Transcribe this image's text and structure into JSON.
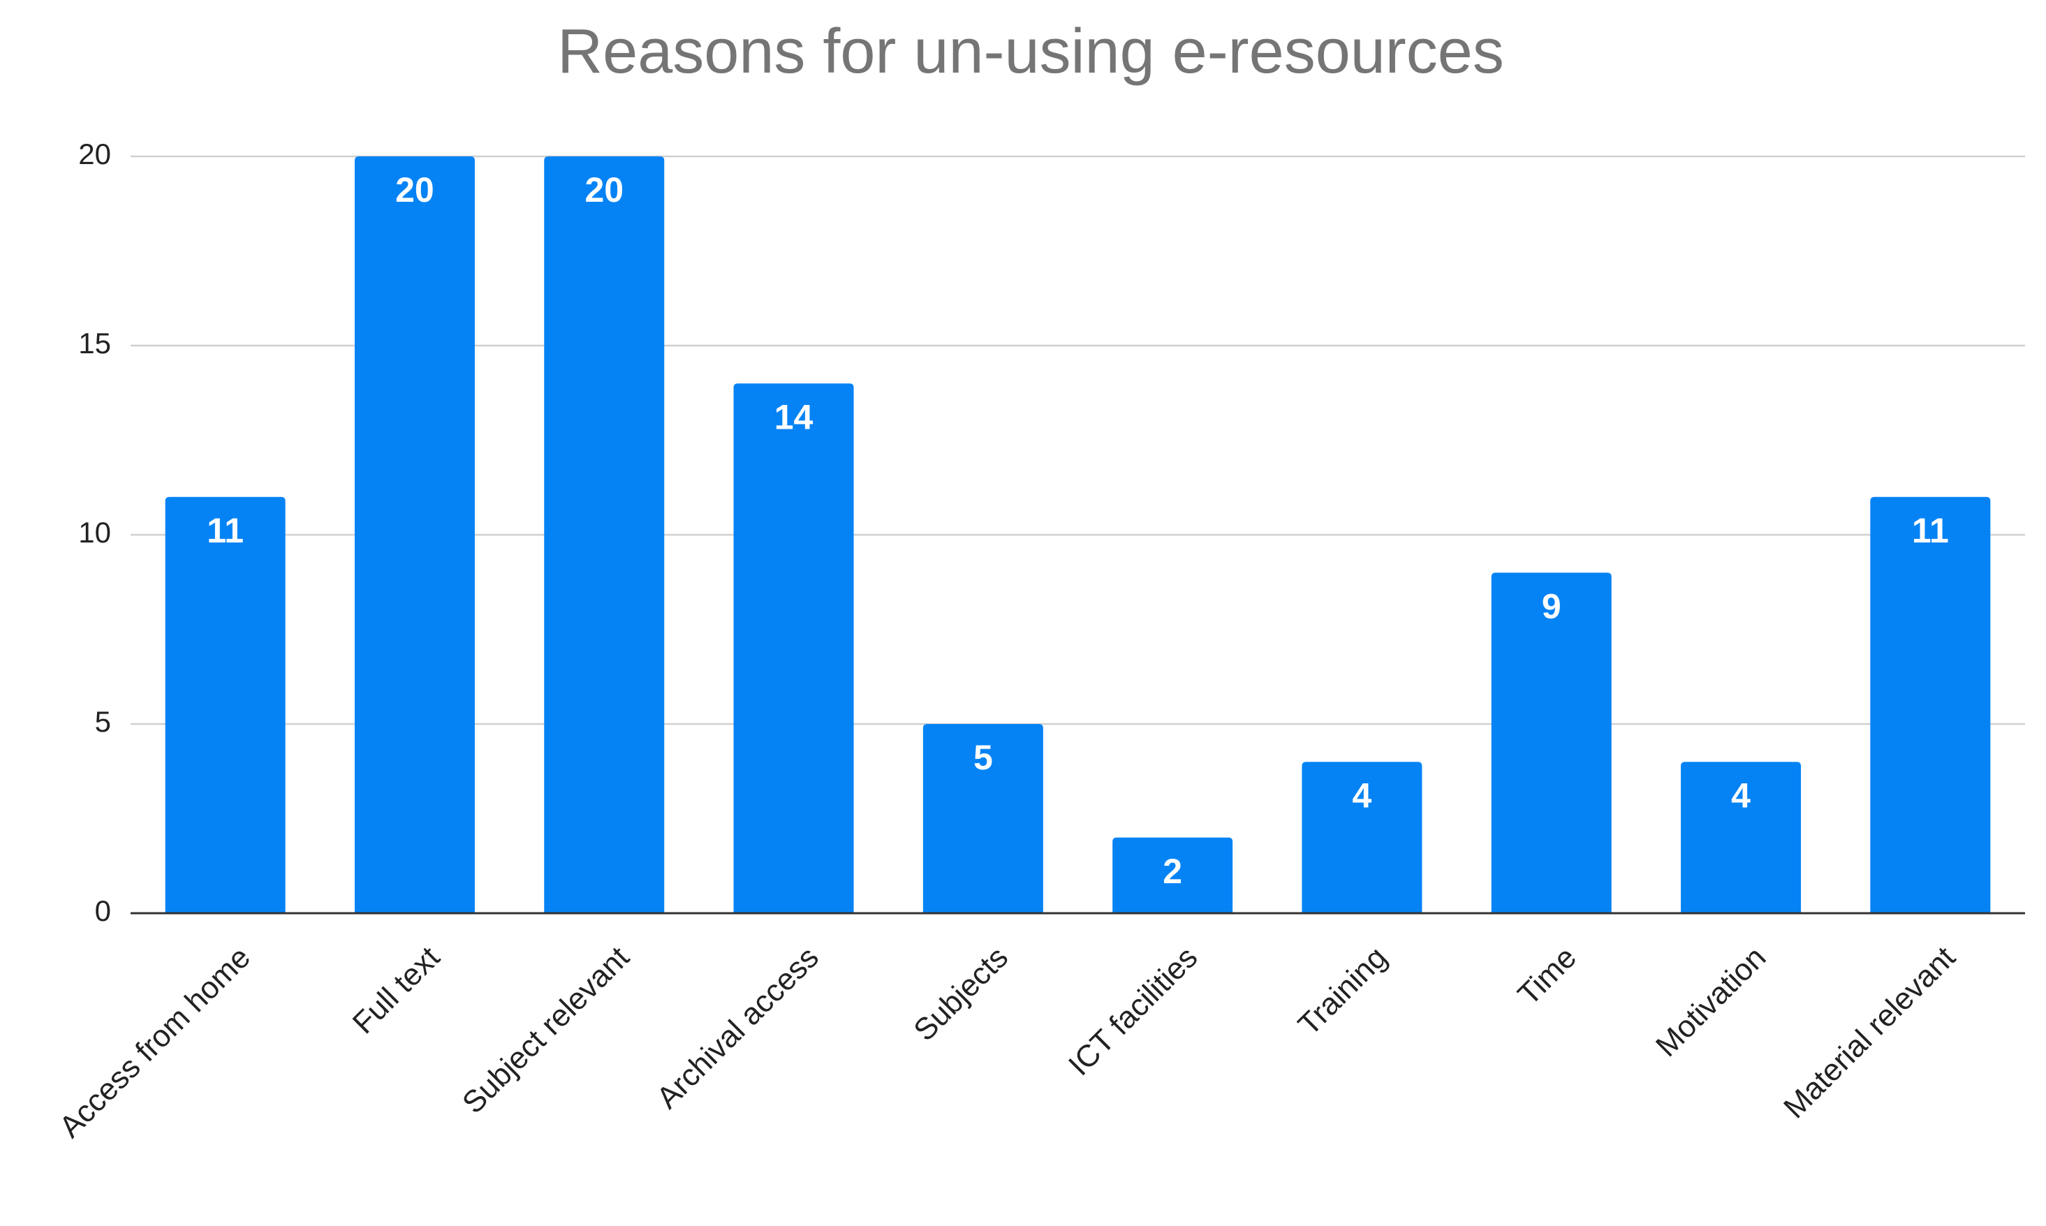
{
  "chart_data": {
    "type": "bar",
    "title": "Reasons for un-using e-resources",
    "categories": [
      "Access from home",
      "Full text",
      "Subject relevant",
      "Archival access",
      "Subjects",
      "ICT facilities",
      "Training",
      "Time",
      "Motivation",
      "Material relevant"
    ],
    "values": [
      11,
      20,
      20,
      14,
      5,
      2,
      4,
      9,
      4,
      11
    ],
    "color": "#0583f5",
    "ylim": [
      0,
      20
    ],
    "yticks": [
      0,
      5,
      10,
      15,
      20
    ],
    "grid": true
  }
}
